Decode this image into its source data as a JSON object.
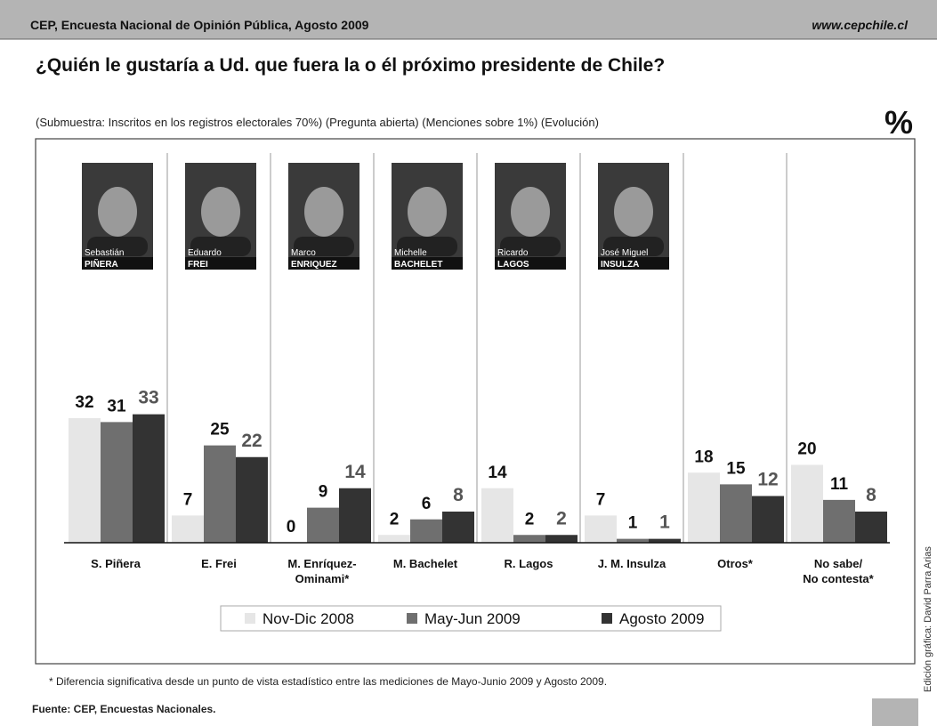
{
  "header": {
    "left": "CEP, Encuesta Nacional de Opinión Pública, Agosto 2009",
    "right": "www.cepchile.cl"
  },
  "chart_data": {
    "type": "bar",
    "title": "¿Quién le gustaría a Ud. que fuera la o él próximo presidente de Chile?",
    "subtitle": "(Submuestra: Inscritos en los registros electorales 70%) (Pregunta abierta)  (Menciones sobre 1%) (Evolución)",
    "unit": "%",
    "categories": [
      "S. Piñera",
      "E. Frei",
      "M. Enríquez-\nOminami*",
      "M. Bachelet",
      "R. Lagos",
      "J. M. Insulza",
      "Otros*",
      "No sabe/\nNo contesta*"
    ],
    "photos": [
      {
        "first": "Sebastián",
        "last": "PIÑERA"
      },
      {
        "first": "Eduardo",
        "last": "FREI"
      },
      {
        "first": "Marco",
        "last": "ENRIQUEZ"
      },
      {
        "first": "Michelle",
        "last": "BACHELET"
      },
      {
        "first": "Ricardo",
        "last": "LAGOS"
      },
      {
        "first": "José Miguel",
        "last": "INSULZA"
      }
    ],
    "series": [
      {
        "name": "Nov-Dic 2008",
        "color": "#e6e6e6",
        "label_color": "#111111",
        "values": [
          32,
          7,
          0,
          2,
          14,
          7,
          18,
          20
        ]
      },
      {
        "name": "May-Jun 2009",
        "color": "#6f6f6f",
        "label_color": "#111111",
        "values": [
          31,
          25,
          9,
          6,
          2,
          1,
          15,
          11
        ]
      },
      {
        "name": "Agosto 2009",
        "color": "#333333",
        "label_color": "#555555",
        "values": [
          33,
          22,
          14,
          8,
          2,
          1,
          12,
          8
        ]
      }
    ],
    "ylim": [
      0,
      40
    ],
    "footnote": "* Diferencia significativa desde un punto de vista estadístico entre las mediciones de Mayo-Junio 2009 y Agosto 2009."
  },
  "footer": {
    "source": "Fuente: CEP, Encuestas Nacionales.",
    "credit": "Edición gráfica: David Parra Arias"
  }
}
